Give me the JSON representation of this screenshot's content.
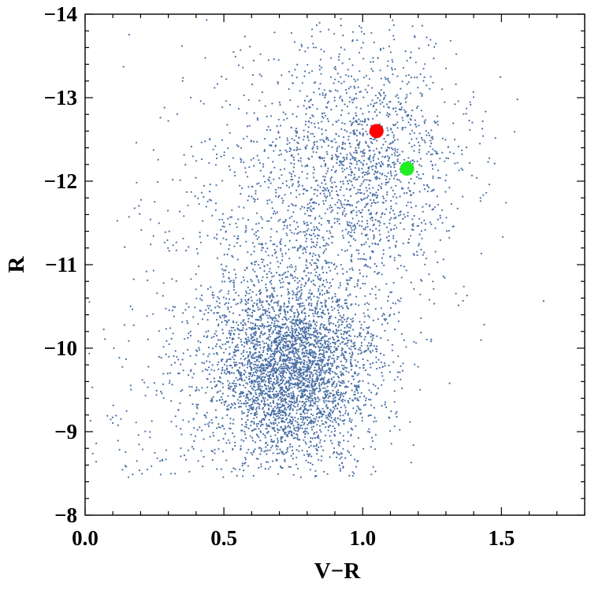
{
  "chart_data": {
    "type": "scatter",
    "xlabel": "V−R",
    "ylabel": "R",
    "xlim": [
      0.0,
      1.8
    ],
    "ylim": [
      -8,
      -14
    ],
    "y_axis_inverted": true,
    "grid": false,
    "x_ticks": [
      0.0,
      0.5,
      1.0,
      1.5
    ],
    "x_tick_labels": [
      "0.0",
      "0.5",
      "1.0",
      "1.5"
    ],
    "y_ticks": [
      -8,
      -9,
      -10,
      -11,
      -12,
      -13,
      -14
    ],
    "y_tick_labels": [
      "−8",
      "−9",
      "−10",
      "−11",
      "−12",
      "−13",
      "−14"
    ],
    "background_cloud": {
      "color": "#4a6fa5",
      "point_count_approx": 6000,
      "density_clusters": [
        {
          "center_x": 0.75,
          "center_y": -9.7,
          "spread_x": 0.15,
          "spread_y": 0.55,
          "weight": 0.55
        },
        {
          "center_x": 1.0,
          "center_y": -12.2,
          "spread_x": 0.18,
          "spread_y": 0.75,
          "weight": 0.25
        },
        {
          "center_x": 0.7,
          "center_y": -11.2,
          "spread_x": 0.22,
          "spread_y": 1.1,
          "weight": 0.15
        },
        {
          "center_x": 0.35,
          "center_y": -9.0,
          "spread_x": 0.25,
          "spread_y": 0.9,
          "weight": 0.05
        }
      ]
    },
    "highlight_points": [
      {
        "x": 1.05,
        "y": -12.6,
        "color": "#ff0000"
      },
      {
        "x": 1.16,
        "y": -12.15,
        "color": "#22ee22"
      }
    ]
  }
}
